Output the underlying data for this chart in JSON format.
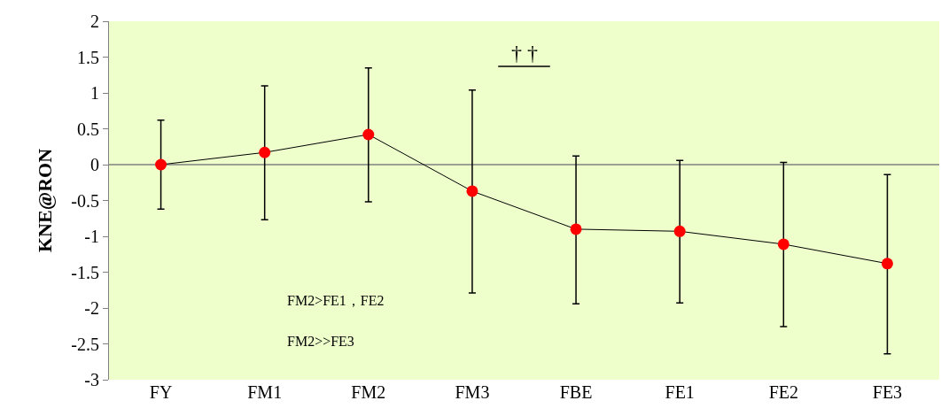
{
  "chart_data": {
    "type": "line",
    "ylabel": "KNE@RON",
    "categories": [
      "FY",
      "FM1",
      "FM2",
      "FM3",
      "FBE",
      "FE1",
      "FE2",
      "FE3"
    ],
    "series": [
      {
        "color": "#ff0000",
        "values": [
          0,
          0.17,
          0.42,
          -0.37,
          -0.9,
          -0.93,
          -1.11,
          -1.38
        ],
        "errors": [
          [
            -0.62,
            0.62
          ],
          [
            -0.77,
            1.1
          ],
          [
            -0.52,
            1.35
          ],
          [
            -1.79,
            1.04
          ],
          [
            -1.94,
            0.12
          ],
          [
            -1.93,
            0.06
          ],
          [
            -2.26,
            0.03
          ],
          [
            -2.64,
            -0.14
          ]
        ]
      }
    ],
    "ylim": [
      -3,
      2
    ],
    "yticks": [
      -3,
      -2.5,
      -2,
      -1.5,
      -1,
      -0.5,
      0,
      0.5,
      1,
      1.5,
      2
    ],
    "marker": "circle",
    "line_style": "solid",
    "ref_lines": [
      {
        "axis": "y",
        "value": 0,
        "color": "#808080"
      }
    ],
    "annotations": [
      "† †",
      "FM2>FE1，FE2",
      "FM2>>FE3"
    ]
  }
}
